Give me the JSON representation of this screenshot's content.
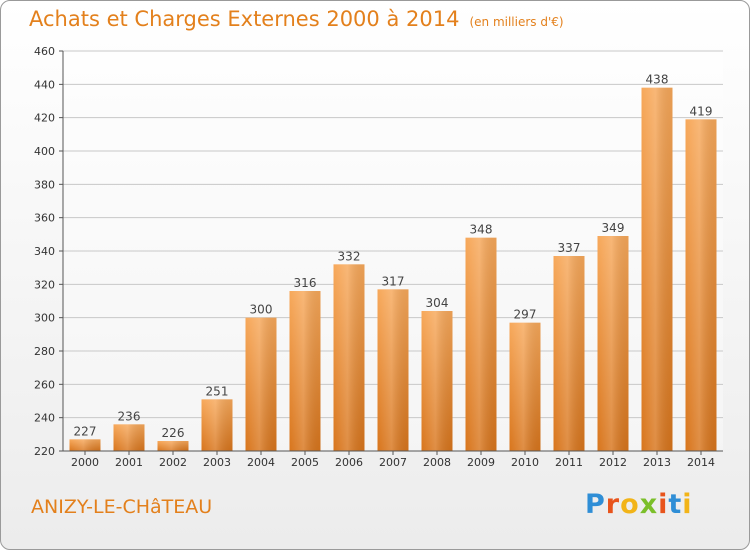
{
  "title": "Achats et Charges Externes 2000 à 2014",
  "subtitle": "(en milliers d'€)",
  "commune": "ANIZY-LE-CHâTEAU",
  "logo": {
    "letters": [
      "P",
      "r",
      "o",
      "x",
      "i",
      "t",
      "i"
    ],
    "colors": [
      "#2f8ed6",
      "#e8541c",
      "#f2b418",
      "#7bbf2a",
      "#e8541c",
      "#2f8ed6",
      "#f2b418"
    ]
  },
  "colors": {
    "title": "#e3801c",
    "bar_light": "#f7a85a",
    "bar_dark": "#d8751c"
  },
  "chart_data": {
    "type": "bar",
    "title": "Achats et Charges Externes 2000 à 2014",
    "categories": [
      "2000",
      "2001",
      "2002",
      "2003",
      "2004",
      "2005",
      "2006",
      "2007",
      "2008",
      "2009",
      "2010",
      "2011",
      "2012",
      "2013",
      "2014"
    ],
    "values": [
      227,
      236,
      226,
      251,
      300,
      316,
      332,
      317,
      304,
      348,
      297,
      337,
      349,
      438,
      419
    ],
    "ylim": [
      220,
      460
    ],
    "yticks": [
      220,
      240,
      260,
      280,
      300,
      320,
      340,
      360,
      380,
      400,
      420,
      440,
      460
    ],
    "grid": true,
    "xlabel": "",
    "ylabel": ""
  }
}
